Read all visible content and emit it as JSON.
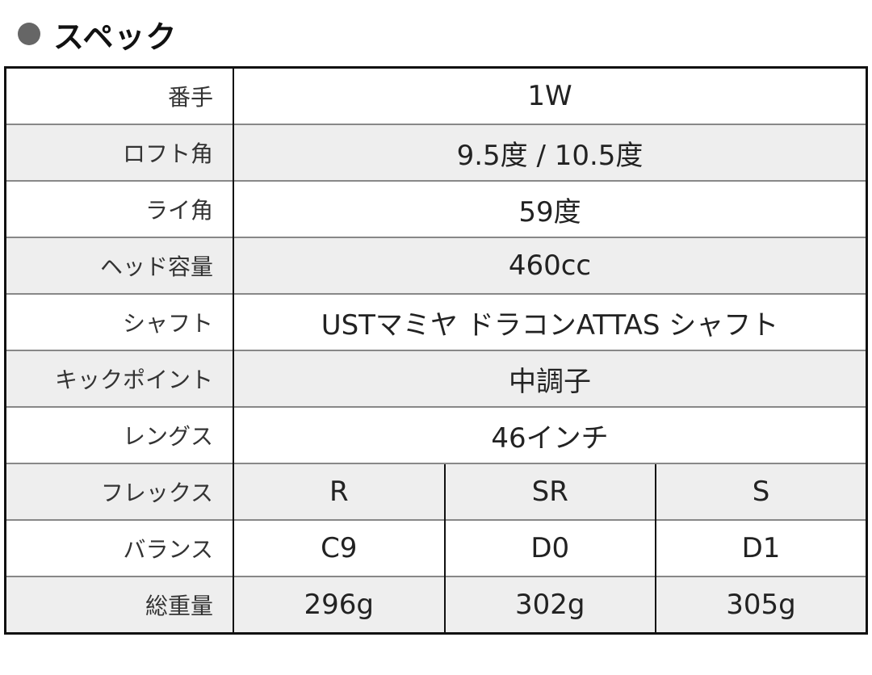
{
  "title": "スペック",
  "colors": {
    "bullet": "#666666",
    "alt_row": "#eeeeee",
    "border": "#111111"
  },
  "rows": [
    {
      "label": "番手",
      "value": "1W"
    },
    {
      "label": "ロフト角",
      "value": "9.5度 / 10.5度"
    },
    {
      "label": "ライ角",
      "value": "59度"
    },
    {
      "label": "ヘッド容量",
      "value": "460cc"
    },
    {
      "label": "シャフト",
      "value": "USTマミヤ ドラコンATTAS シャフト"
    },
    {
      "label": "キックポイント",
      "value": "中調子"
    },
    {
      "label": "レングス",
      "value": "46インチ"
    }
  ],
  "multi_rows": [
    {
      "label": "フレックス",
      "values": [
        "R",
        "SR",
        "S"
      ]
    },
    {
      "label": "バランス",
      "values": [
        "C9",
        "D0",
        "D1"
      ]
    },
    {
      "label": "総重量",
      "values": [
        "296g",
        "302g",
        "305g"
      ]
    }
  ]
}
